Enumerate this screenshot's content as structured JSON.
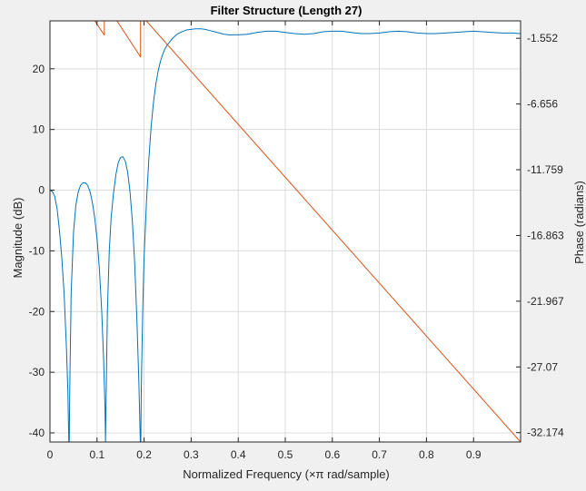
{
  "chart_data": {
    "type": "line",
    "title": "Filter Structure (Length 27)",
    "xlabel": "Normalized Frequency (×π rad/sample)",
    "ylabel": "Magnitude (dB)",
    "ylabel_right": "Phase (radians)",
    "xlim": [
      0,
      1
    ],
    "ylim_left": [
      -41.5,
      27.9
    ],
    "ylim_right": [
      -32.9,
      -0.2
    ],
    "x_ticks": [
      0,
      0.1,
      0.2,
      0.3,
      0.4,
      0.5,
      0.6,
      0.7,
      0.8,
      0.9
    ],
    "x_tick_labels": [
      "0",
      "0.1",
      "0.2",
      "0.3",
      "0.4",
      "0.5",
      "0.6",
      "0.7",
      "0.8",
      "0.9"
    ],
    "y_left_ticks": [
      20,
      10,
      0,
      -10,
      -20,
      -30,
      -40
    ],
    "y_left_tick_labels": [
      "20",
      "10",
      "0",
      "-10",
      "-20",
      "-30",
      "-40"
    ],
    "y_right_ticks": [
      -1.552,
      -6.656,
      -11.759,
      -16.863,
      -21.967,
      -27.07,
      -32.174
    ],
    "y_right_tick_labels": [
      "-1.552",
      "-6.656",
      "-11.759",
      "-16.863",
      "-21.967",
      "-27.07",
      "-32.174"
    ],
    "grid": true,
    "series": [
      {
        "axis": "left",
        "color": "#0072bd",
        "x": [
          0,
          0.005,
          0.01,
          0.015,
          0.02,
          0.025,
          0.03,
          0.035,
          0.038,
          0.04,
          0.041,
          0.042,
          0.045,
          0.05,
          0.055,
          0.06,
          0.065,
          0.07,
          0.075,
          0.08,
          0.085,
          0.09,
          0.095,
          0.1,
          0.105,
          0.11,
          0.114,
          0.117,
          0.118,
          0.119,
          0.122,
          0.126,
          0.13,
          0.135,
          0.14,
          0.145,
          0.15,
          0.155,
          0.16,
          0.165,
          0.17,
          0.175,
          0.18,
          0.185,
          0.189,
          0.192,
          0.193,
          0.194,
          0.197,
          0.2,
          0.205,
          0.21,
          0.215,
          0.22,
          0.225,
          0.23,
          0.235,
          0.24,
          0.245,
          0.25,
          0.26,
          0.27,
          0.28,
          0.29,
          0.3,
          0.31,
          0.32,
          0.33,
          0.34,
          0.35,
          0.36,
          0.37,
          0.38,
          0.39,
          0.4,
          0.42,
          0.44,
          0.46,
          0.48,
          0.5,
          0.52,
          0.54,
          0.56,
          0.58,
          0.6,
          0.62,
          0.64,
          0.66,
          0.68,
          0.7,
          0.72,
          0.74,
          0.76,
          0.78,
          0.8,
          0.82,
          0.84,
          0.86,
          0.88,
          0.9,
          0.92,
          0.94,
          0.96,
          0.98,
          1.0
        ],
        "y": [
          0,
          -0.2,
          -1,
          -3,
          -6.5,
          -11,
          -17,
          -26,
          -33,
          -41.5,
          -41.5,
          -33,
          -17,
          -7,
          -2.5,
          -0.3,
          0.8,
          1.2,
          1.2,
          0.8,
          -0.2,
          -2,
          -4.5,
          -8,
          -13,
          -20,
          -28,
          -36,
          -41.5,
          -36,
          -20,
          -10,
          -4.5,
          -0.5,
          2.5,
          4.5,
          5.4,
          5.5,
          4.8,
          3,
          -0.2,
          -5,
          -12,
          -22,
          -32,
          -41.5,
          -41.5,
          -33,
          -20,
          -11,
          -2,
          5,
          10.5,
          14.5,
          17.5,
          19.7,
          21.3,
          22.5,
          23.4,
          24,
          25,
          25.7,
          26.1,
          26.4,
          26.5,
          26.6,
          26.6,
          26.5,
          26.3,
          26.1,
          25.9,
          25.7,
          25.6,
          25.6,
          25.6,
          25.7,
          26.0,
          26.2,
          26.2,
          26.0,
          25.8,
          25.7,
          25.8,
          26.1,
          26.2,
          26.2,
          26.0,
          25.8,
          25.8,
          25.9,
          26.1,
          26.2,
          26.1,
          25.9,
          25.8,
          25.8,
          25.9,
          26.0,
          26.1,
          26.2,
          26.1,
          26.0,
          25.9,
          25.9,
          25.8
        ]
      },
      {
        "axis": "right",
        "color": "#d95319",
        "x": [
          0,
          0.0385,
          0.0385,
          0.1155,
          0.1155,
          0.1925,
          0.1925,
          1.0
        ],
        "y": [
          2.4,
          0.1,
          2.9,
          -1.3,
          1.3,
          -3.0,
          0.3,
          -32.9
        ]
      }
    ]
  }
}
